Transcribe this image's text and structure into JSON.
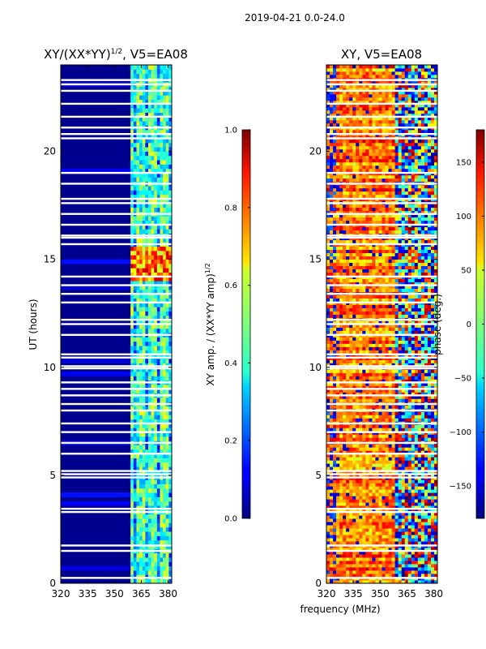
{
  "suptitle": "2019-04-21 0.0-24.0",
  "shared_xlabel": "frequency (MHz)",
  "chart_data": [
    {
      "type": "heatmap",
      "title_main": "XY/(XX*YY)",
      "title_sup": "1/2",
      "title_tail": ", V5=EA08",
      "xlabel": "",
      "ylabel": "UT (hours)",
      "x_range": [
        320,
        382
      ],
      "y_range": [
        0,
        24
      ],
      "x_ticks": [
        "320",
        "335",
        "350",
        "365",
        "380"
      ],
      "x_tick_values": [
        320,
        335,
        350,
        365,
        380
      ],
      "y_ticks": [
        "0",
        "5",
        "10",
        "15",
        "20"
      ],
      "y_tick_values": [
        0,
        5,
        10,
        15,
        20
      ],
      "colorbar": {
        "label_main": "XY amp. / (XX*YY amp)",
        "label_sup": "1/2",
        "range": [
          0.0,
          1.0
        ],
        "ticks": [
          "0.0",
          "0.2",
          "0.4",
          "0.6",
          "0.8",
          "1.0"
        ],
        "tick_values": [
          0.0,
          0.2,
          0.4,
          0.6,
          0.8,
          1.0
        ]
      },
      "colormap": "jet",
      "description_values": {
        "low_band_mhz": [
          320,
          359
        ],
        "low_band_amp": 0.05,
        "high_band_mhz": [
          359,
          382
        ],
        "high_band_amp": 0.45,
        "bright_interval_hours": [
          14.0,
          15.6
        ]
      },
      "flagged_hours": [
        0.25,
        1.5,
        1.75,
        3.3,
        3.45,
        4.9,
        5.05,
        5.2,
        6.0,
        6.5,
        7.0,
        7.4,
        8.0,
        8.3,
        8.7,
        9.0,
        9.3,
        9.95,
        10.05,
        10.45,
        10.6,
        11.5,
        12.0,
        12.2,
        13.0,
        13.4,
        13.8,
        14.2,
        15.7,
        16.0,
        16.1,
        16.6,
        17.1,
        17.6,
        17.8,
        18.5,
        19.0,
        20.6,
        20.8,
        21.1,
        21.6,
        22.2,
        22.8,
        23.1,
        23.3
      ]
    },
    {
      "type": "heatmap",
      "title": "XY, V5=EA08",
      "xlabel": "",
      "ylabel": "",
      "x_range": [
        320,
        382
      ],
      "y_range": [
        0,
        24
      ],
      "x_ticks": [
        "320",
        "335",
        "350",
        "365",
        "380"
      ],
      "x_tick_values": [
        320,
        335,
        350,
        365,
        380
      ],
      "y_ticks": [
        "0",
        "5",
        "10",
        "15",
        "20"
      ],
      "y_tick_values": [
        0,
        5,
        10,
        15,
        20
      ],
      "colorbar": {
        "label": "phase (deg.)",
        "range": [
          -180,
          180
        ],
        "ticks": [
          "−150",
          "−100",
          "−50",
          "0",
          "50",
          "100",
          "150"
        ],
        "tick_values": [
          -150,
          -100,
          -50,
          0,
          50,
          100,
          150
        ]
      },
      "colormap": "jet",
      "flagged_hours": [
        0.25,
        1.5,
        1.75,
        3.3,
        3.45,
        4.9,
        5.05,
        5.2,
        6.0,
        6.5,
        7.0,
        7.4,
        8.0,
        8.3,
        8.7,
        9.0,
        9.3,
        9.95,
        10.05,
        10.45,
        10.6,
        11.5,
        12.0,
        12.2,
        13.0,
        13.4,
        13.8,
        14.2,
        15.7,
        16.0,
        16.1,
        16.6,
        17.1,
        17.6,
        17.8,
        18.5,
        19.0,
        20.6,
        20.8,
        21.1,
        21.6,
        22.2,
        22.8,
        23.1,
        23.3
      ]
    }
  ]
}
